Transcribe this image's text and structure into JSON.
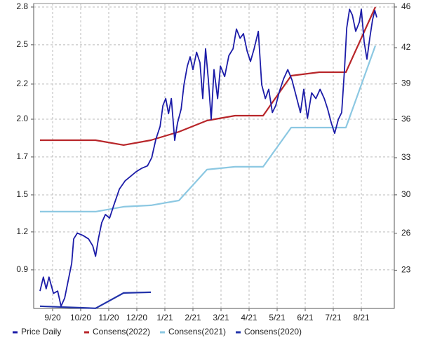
{
  "chart_data": {
    "type": "line",
    "xlim": [
      -0.675,
      12.175
    ],
    "xticks": [
      {
        "value": 0,
        "label": "9/20"
      },
      {
        "value": 1,
        "label": "10/20"
      },
      {
        "value": 2,
        "label": "11/20"
      },
      {
        "value": 3,
        "label": "12/20"
      },
      {
        "value": 4,
        "label": "1/21"
      },
      {
        "value": 5,
        "label": "2/21"
      },
      {
        "value": 6,
        "label": "3/21"
      },
      {
        "value": 7,
        "label": "4/21"
      },
      {
        "value": 8,
        "label": "5/21"
      },
      {
        "value": 9,
        "label": "6/21"
      },
      {
        "value": 10,
        "label": "7/21"
      },
      {
        "value": 11,
        "label": "8/21"
      }
    ],
    "ylim": [
      0.645,
      2.825
    ],
    "yticks": [
      2.8,
      {
        "value": 2.53,
        "label": "2.5"
      },
      {
        "value": 2.249,
        "label": "2.2"
      },
      {
        "value": 1.998,
        "label": "2.0"
      },
      {
        "value": 1.728,
        "label": "1.7"
      },
      {
        "value": 1.457,
        "label": "1.5"
      },
      {
        "value": 1.192,
        "label": "1.2"
      },
      {
        "value": 0.921,
        "label": "0.9"
      }
    ],
    "y2lim": [
      20.0,
      46.3
    ],
    "y2ticks": [
      46,
      {
        "value": 42.49,
        "label": "42"
      },
      {
        "value": 39.4,
        "label": "39"
      },
      {
        "value": 36.3,
        "label": "36"
      },
      {
        "value": 33.0,
        "label": "33"
      },
      {
        "value": 29.8,
        "label": "30"
      },
      {
        "value": 26.49,
        "label": "26"
      },
      {
        "value": 23.3,
        "label": "23"
      }
    ],
    "grid": true,
    "legend": "bottom",
    "series": [
      {
        "name": "Price Daily",
        "color": "#1c1ca8",
        "axis": "y2",
        "x": [
          -0.45,
          -0.33,
          -0.23,
          -0.13,
          0.03,
          0.18,
          0.3,
          0.43,
          0.58,
          0.68,
          0.75,
          0.88,
          1.08,
          1.28,
          1.43,
          1.53,
          1.63,
          1.75,
          1.88,
          2.03,
          2.18,
          2.38,
          2.58,
          2.78,
          2.98,
          3.18,
          3.38,
          3.53,
          3.68,
          3.83,
          3.93,
          4.03,
          4.13,
          4.23,
          4.35,
          4.45,
          4.58,
          4.68,
          4.8,
          4.9,
          5.0,
          5.13,
          5.25,
          5.35,
          5.45,
          5.55,
          5.65,
          5.75,
          5.88,
          5.98,
          6.13,
          6.28,
          6.43,
          6.55,
          6.68,
          6.8,
          6.93,
          7.05,
          7.18,
          7.33,
          7.45,
          7.58,
          7.7,
          7.83,
          7.95,
          8.08,
          8.23,
          8.38,
          8.53,
          8.68,
          8.83,
          8.95,
          9.08,
          9.23,
          9.38,
          9.53,
          9.68,
          9.8,
          9.93,
          10.05,
          10.18,
          10.3,
          10.4,
          10.48,
          10.58,
          10.68,
          10.8,
          10.93,
          11.0,
          11.1,
          11.2,
          11.3,
          11.4,
          11.48,
          11.55
        ],
        "values": [
          21.5,
          22.7,
          21.7,
          22.7,
          21.3,
          21.5,
          20.2,
          20.9,
          22.7,
          23.9,
          26.0,
          26.5,
          26.3,
          26.0,
          25.4,
          24.5,
          26.0,
          27.4,
          28.1,
          27.8,
          28.9,
          30.3,
          31.0,
          31.4,
          31.8,
          32.1,
          32.3,
          33.0,
          34.6,
          35.7,
          37.5,
          38.1,
          36.8,
          38.1,
          34.5,
          36.0,
          37.2,
          39.3,
          40.9,
          41.7,
          40.6,
          42.1,
          41.2,
          38.1,
          42.4,
          39.7,
          36.3,
          40.6,
          38.1,
          40.9,
          40.0,
          41.8,
          42.4,
          44.1,
          43.3,
          43.7,
          42.2,
          41.3,
          42.4,
          43.9,
          39.3,
          38.1,
          38.9,
          36.9,
          37.5,
          38.7,
          39.8,
          40.6,
          39.7,
          38.3,
          36.9,
          38.9,
          36.4,
          38.6,
          38.1,
          38.9,
          38.1,
          37.2,
          36.0,
          35.1,
          36.3,
          36.9,
          40.6,
          44.2,
          45.8,
          45.3,
          43.9,
          44.7,
          45.8,
          43.0,
          41.5,
          43.3,
          44.9,
          45.7,
          45.1
        ]
      },
      {
        "name": "Consens(2022)",
        "color": "#b8262a",
        "x": [
          -0.45,
          1.53,
          2.53,
          3.5,
          4.5,
          5.5,
          6.5,
          7.5,
          8.5,
          9.5,
          10.45,
          11.5
        ],
        "values": [
          1.848,
          1.848,
          1.813,
          1.848,
          1.908,
          1.988,
          2.023,
          2.023,
          2.309,
          2.334,
          2.334,
          2.8
        ]
      },
      {
        "name": "Consens(2021)",
        "color": "#8cc8e2",
        "x": [
          -0.45,
          1.53,
          2.53,
          3.5,
          4.5,
          5.5,
          6.5,
          7.5,
          8.5,
          9.5,
          10.45,
          11.5
        ],
        "values": [
          1.337,
          1.337,
          1.372,
          1.382,
          1.417,
          1.638,
          1.658,
          1.658,
          1.938,
          1.938,
          1.938,
          2.524
        ]
      },
      {
        "name": "Consens(2020)",
        "color": "#2233aa",
        "x": [
          -0.45,
          1.53,
          2.53,
          3.5
        ],
        "values": [
          0.661,
          0.646,
          0.756,
          0.761
        ]
      }
    ]
  }
}
